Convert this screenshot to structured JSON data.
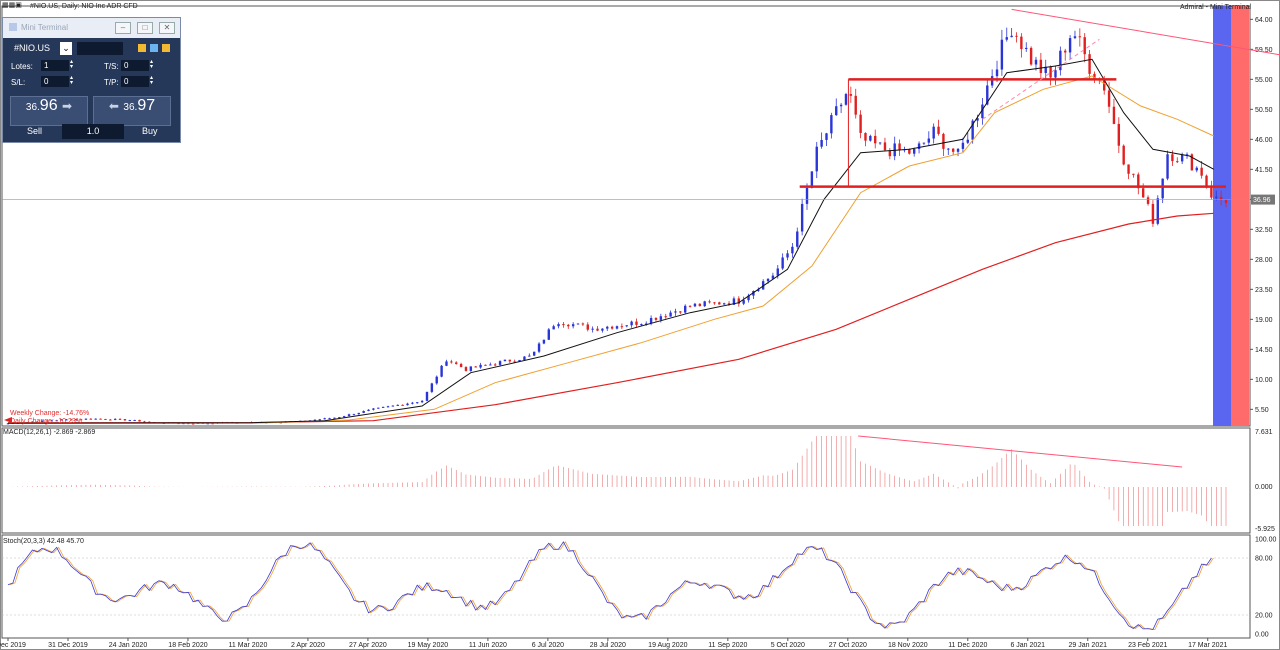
{
  "header": {
    "symbol_title": "#NIO.US, Daily:  NIO Inc ADR CFD",
    "right_label": "Admiral - Mini Terminal"
  },
  "mini_terminal": {
    "title": "Mini Terminal",
    "symbol": "#NIO.US",
    "lots_label": "Lotes:",
    "lots_value": "1",
    "sl_label": "S/L:",
    "sl_value": "0",
    "ts_label": "T/S:",
    "ts_value": "0",
    "tp_label": "T/P:",
    "tp_value": "0",
    "sell_small": "36.",
    "sell_big": "96",
    "buy_small": "36.",
    "buy_big": "97",
    "sell_label": "Sell",
    "buy_label": "Buy",
    "volume": "1.0"
  },
  "overlay_text": {
    "weekly_change": "Weekly Change: -14.76%",
    "daily_change": "Daily Change: -10.23%"
  },
  "price_axis": {
    "ticks": [
      "64.00",
      "59.50",
      "55.00",
      "50.50",
      "46.00",
      "41.50",
      "37.00",
      "32.50",
      "28.00",
      "23.50",
      "19.00",
      "14.50",
      "10.00",
      "5.50"
    ],
    "current": "36.96"
  },
  "macd": {
    "label": "MACD(12,26,1) -2.869 -2.869",
    "axis_top": "7.631",
    "axis_zero": "0.000",
    "axis_bottom": "-5.925"
  },
  "stoch": {
    "label": "Stoch(20,3,3) 42.48 45.70",
    "axis": [
      "100.00",
      "80.00",
      "20.00",
      "0.00"
    ]
  },
  "chart_data": {
    "type": "candlestick",
    "symbol": "#NIO.US",
    "timeframe": "Daily",
    "x_ticks": [
      "6 Dec 2019",
      "31 Dec 2019",
      "24 Jan 2020",
      "18 Feb 2020",
      "11 Mar 2020",
      "2 Apr 2020",
      "27 Apr 2020",
      "19 May 2020",
      "11 Jun 2020",
      "6 Jul 2020",
      "28 Jul 2020",
      "19 Aug 2020",
      "11 Sep 2020",
      "5 Oct 2020",
      "27 Oct 2020",
      "18 Nov 2020",
      "11 Dec 2020",
      "6 Jan 2021",
      "29 Jan 2021",
      "23 Feb 2021",
      "17 Mar 2021"
    ],
    "ylim": [
      3,
      66
    ],
    "close_path": [
      [
        0,
        3.4
      ],
      [
        20,
        3.9
      ],
      [
        35,
        4.1
      ],
      [
        50,
        3.9
      ],
      [
        60,
        3.5
      ],
      [
        75,
        3.4
      ],
      [
        95,
        3.5
      ],
      [
        120,
        3.7
      ],
      [
        135,
        4.3
      ],
      [
        150,
        5.5
      ],
      [
        170,
        6.8
      ],
      [
        180,
        13.0
      ],
      [
        188,
        11.5
      ],
      [
        200,
        12.4
      ],
      [
        215,
        13.5
      ],
      [
        225,
        18.8
      ],
      [
        240,
        17.6
      ],
      [
        260,
        18.6
      ],
      [
        280,
        21.0
      ],
      [
        300,
        21.8
      ],
      [
        315,
        26.0
      ],
      [
        322,
        30.0
      ],
      [
        332,
        44.0
      ],
      [
        340,
        50.0
      ],
      [
        345,
        53.5
      ],
      [
        350,
        46.0
      ],
      [
        360,
        44.5
      ],
      [
        372,
        44.0
      ],
      [
        380,
        47.0
      ],
      [
        390,
        43.5
      ],
      [
        398,
        50.0
      ],
      [
        405,
        57.0
      ],
      [
        412,
        63.0
      ],
      [
        420,
        58.0
      ],
      [
        428,
        55.0
      ],
      [
        437,
        62.5
      ],
      [
        444,
        57.0
      ],
      [
        450,
        54.0
      ],
      [
        457,
        44.0
      ],
      [
        465,
        38.0
      ],
      [
        470,
        34.0
      ],
      [
        476,
        44.0
      ],
      [
        484,
        43.0
      ],
      [
        490,
        41.0
      ],
      [
        495,
        36.96
      ]
    ],
    "ema_fast": [
      [
        0,
        3.4
      ],
      [
        100,
        3.5
      ],
      [
        130,
        3.8
      ],
      [
        170,
        6.0
      ],
      [
        190,
        11.0
      ],
      [
        220,
        13.5
      ],
      [
        250,
        17.0
      ],
      [
        280,
        20.0
      ],
      [
        300,
        21.5
      ],
      [
        320,
        26.5
      ],
      [
        335,
        37.0
      ],
      [
        350,
        44.0
      ],
      [
        370,
        44.5
      ],
      [
        392,
        46.0
      ],
      [
        410,
        56.0
      ],
      [
        430,
        57.0
      ],
      [
        445,
        58.0
      ],
      [
        458,
        50.0
      ],
      [
        470,
        44.5
      ],
      [
        485,
        43.5
      ],
      [
        495,
        41.5
      ]
    ],
    "ema_mid": [
      [
        0,
        3.4
      ],
      [
        100,
        3.4
      ],
      [
        140,
        3.9
      ],
      [
        175,
        5.5
      ],
      [
        200,
        9.5
      ],
      [
        230,
        12.5
      ],
      [
        260,
        15.5
      ],
      [
        290,
        19.0
      ],
      [
        310,
        21.0
      ],
      [
        330,
        27.0
      ],
      [
        350,
        38.0
      ],
      [
        370,
        42.0
      ],
      [
        392,
        44.0
      ],
      [
        405,
        50.0
      ],
      [
        425,
        53.5
      ],
      [
        445,
        55.5
      ],
      [
        465,
        51.0
      ],
      [
        480,
        49.0
      ],
      [
        495,
        46.5
      ]
    ],
    "ma_slow": [
      [
        0,
        3.5
      ],
      [
        100,
        3.5
      ],
      [
        150,
        3.8
      ],
      [
        200,
        6.2
      ],
      [
        250,
        9.5
      ],
      [
        300,
        13.0
      ],
      [
        340,
        17.5
      ],
      [
        370,
        22.0
      ],
      [
        400,
        26.5
      ],
      [
        430,
        30.5
      ],
      [
        460,
        33.3
      ],
      [
        480,
        34.5
      ],
      [
        495,
        34.9
      ]
    ],
    "levels": [
      {
        "price": 55.0,
        "from": 345,
        "to": 455
      },
      {
        "price": 38.9,
        "from": 325,
        "to": 500
      }
    ],
    "trendline": {
      "from": [
        412,
        65.5
      ],
      "to": [
        525,
        58.5
      ]
    },
    "vertical_bands": [
      "#5a66f0",
      "#ff6b6b"
    ]
  }
}
